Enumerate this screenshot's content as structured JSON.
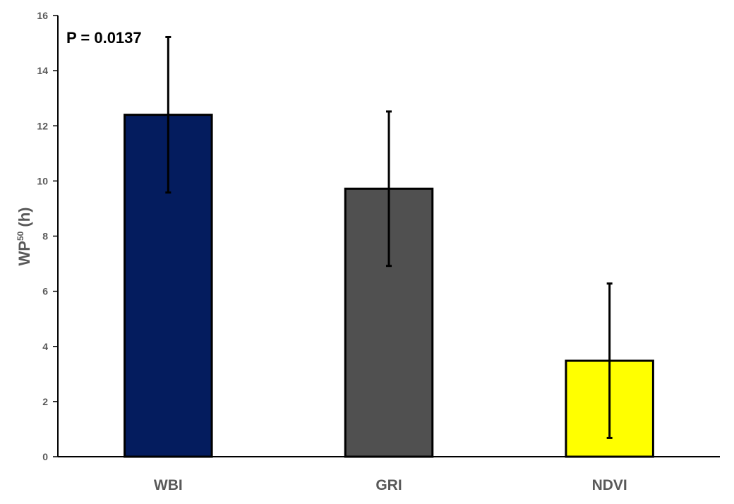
{
  "chart_data": {
    "type": "bar",
    "categories": [
      "WBI",
      "GRI",
      "NDVI"
    ],
    "values": [
      12.4,
      9.72,
      3.48
    ],
    "error": [
      2.82,
      2.8,
      2.8
    ],
    "colors": [
      "#041c5e",
      "#505050",
      "#ffff00"
    ],
    "bar_outline_color": "#000000",
    "ylabel_main": "WP",
    "ylabel_sup": "50",
    "ylabel_unit": " (h)",
    "ylim": [
      0,
      16
    ],
    "yticks": [
      0,
      2,
      4,
      6,
      8,
      10,
      12,
      14,
      16
    ],
    "grid": false,
    "annotation": "P = 0.0137"
  }
}
